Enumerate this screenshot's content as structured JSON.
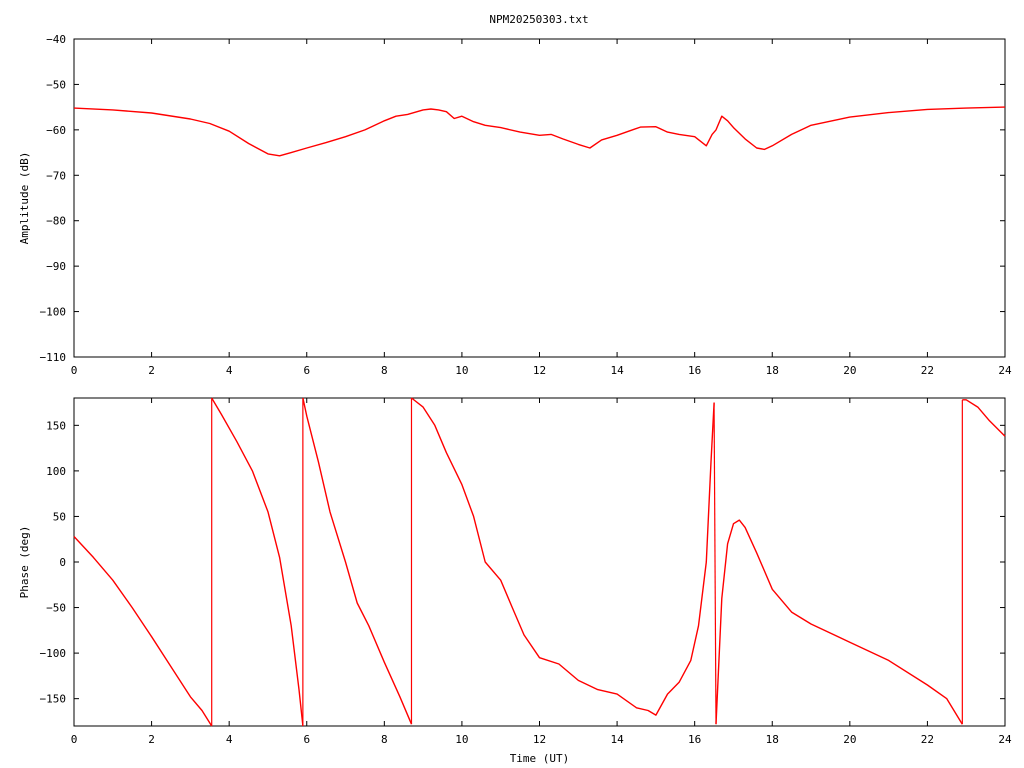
{
  "title": "NPM20250303.txt",
  "chart_data": [
    {
      "type": "line",
      "title": "NPM20250303.txt",
      "xlabel": "",
      "ylabel": "Amplitude (dB)",
      "xlim": [
        0,
        24
      ],
      "ylim": [
        -110,
        -40
      ],
      "xticks": [
        0,
        2,
        4,
        6,
        8,
        10,
        12,
        14,
        16,
        18,
        20,
        22,
        24
      ],
      "yticks": [
        -40,
        -50,
        -60,
        -70,
        -80,
        -90,
        -100,
        -110
      ],
      "grid": false,
      "color": "#ff0000",
      "series": [
        {
          "x": [
            0,
            1,
            2,
            3,
            3.5,
            4,
            4.5,
            5,
            5.3,
            5.6,
            6,
            6.5,
            7,
            7.5,
            8,
            8.3,
            8.6,
            9.0,
            9.2,
            9.4,
            9.6,
            9.8,
            10.0,
            10.3,
            10.6,
            11.0,
            11.5,
            12.0,
            12.3,
            12.6,
            13.0,
            13.3,
            13.6,
            14.0,
            14.3,
            14.6,
            15.0,
            15.3,
            15.6,
            16.0,
            16.3,
            16.45,
            16.55,
            16.7,
            16.85,
            17.0,
            17.3,
            17.6,
            17.8,
            18.0,
            18.5,
            19.0,
            20.0,
            21.0,
            22.0,
            23.0,
            24.0
          ],
          "values": [
            -55.2,
            -55.6,
            -56.3,
            -57.6,
            -58.6,
            -60.3,
            -63.0,
            -65.3,
            -65.7,
            -65.0,
            -64.0,
            -62.8,
            -61.5,
            -60.0,
            -58.0,
            -57.0,
            -56.6,
            -55.6,
            -55.4,
            -55.6,
            -56.0,
            -57.5,
            -57.0,
            -58.2,
            -59.0,
            -59.5,
            -60.5,
            -61.2,
            -61.0,
            -62.0,
            -63.2,
            -64.0,
            -62.2,
            -61.2,
            -60.3,
            -59.4,
            -59.3,
            -60.5,
            -61.0,
            -61.5,
            -63.5,
            -61.0,
            -60.0,
            -57.0,
            -58.0,
            -59.5,
            -62.0,
            -64.0,
            -64.3,
            -63.5,
            -61.0,
            -59.0,
            -57.2,
            -56.2,
            -55.5,
            -55.2,
            -55.0
          ]
        }
      ]
    },
    {
      "type": "line",
      "title": "",
      "xlabel": "Time (UT)",
      "ylabel": "Phase (deg)",
      "xlim": [
        0,
        24
      ],
      "ylim": [
        -180,
        180
      ],
      "xticks": [
        0,
        2,
        4,
        6,
        8,
        10,
        12,
        14,
        16,
        18,
        20,
        22,
        24
      ],
      "yticks": [
        150,
        100,
        50,
        0,
        -50,
        -100,
        -150
      ],
      "grid": false,
      "color": "#ff0000",
      "series": [
        {
          "segments": [
            {
              "x": [
                0.0,
                0.5,
                1.0,
                1.5,
                2.0,
                2.5,
                3.0,
                3.3,
                3.55
              ],
              "values": [
                28,
                5,
                -20,
                -50,
                -82,
                -115,
                -148,
                -163,
                -180
              ]
            },
            {
              "x": [
                3.55,
                3.8,
                4.2,
                4.6,
                5.0,
                5.3,
                5.6,
                5.8,
                5.9
              ],
              "values": [
                180,
                162,
                132,
                100,
                55,
                5,
                -70,
                -140,
                -180
              ]
            },
            {
              "x": [
                5.9,
                6.0,
                6.3,
                6.6,
                7.0,
                7.3,
                7.6,
                8.0,
                8.4,
                8.7
              ],
              "values": [
                180,
                160,
                110,
                55,
                0,
                -45,
                -70,
                -110,
                -148,
                -178
              ]
            },
            {
              "x": [
                8.7,
                9.0,
                9.3,
                9.6,
                10.0,
                10.3,
                10.6,
                11.0,
                11.3,
                11.6,
                12.0,
                12.5,
                13.0,
                13.5,
                14.0,
                14.5,
                14.8,
                15.0,
                15.3,
                15.6,
                15.9,
                16.1,
                16.3,
                16.42,
                16.5
              ],
              "values": [
                180,
                170,
                150,
                120,
                85,
                50,
                0,
                -20,
                -50,
                -80,
                -105,
                -112,
                -130,
                -140,
                -145,
                -160,
                -163,
                -168,
                -145,
                -132,
                -108,
                -70,
                0,
                110,
                175
              ]
            },
            {
              "x": [
                16.55,
                16.7,
                16.85,
                17.0,
                17.15,
                17.3,
                17.6,
                18.0,
                18.5,
                19.0,
                20.0,
                21.0,
                22.0,
                22.5,
                22.9
              ],
              "values": [
                -178,
                -40,
                20,
                42,
                46,
                38,
                10,
                -30,
                -55,
                -68,
                -88,
                -108,
                -135,
                -150,
                -178
              ]
            },
            {
              "x": [
                22.9,
                23.0,
                23.3,
                23.6,
                24.0
              ],
              "values": [
                178,
                178,
                170,
                155,
                138
              ]
            }
          ]
        }
      ]
    }
  ]
}
